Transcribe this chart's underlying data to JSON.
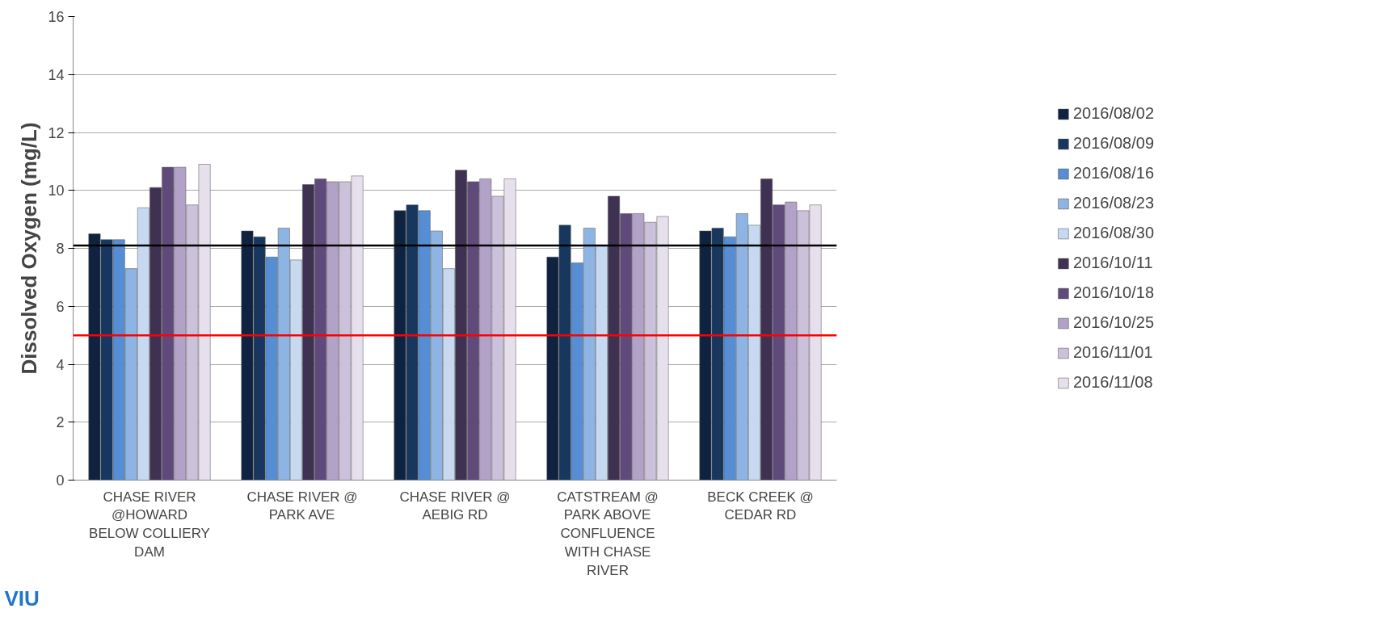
{
  "chart_data": {
    "type": "bar",
    "ylabel": "Dissolved Oxygen (mg/L)",
    "categories": [
      "CHASE RIVER\n@HOWARD\nBELOW COLLIERY\nDAM",
      "CHASE RIVER @\nPARK AVE",
      "CHASE RIVER @\nAEBIG RD",
      "CATSTREAM @\nPARK ABOVE\nCONFLUENCE\nWITH CHASE\nRIVER",
      "BECK CREEK @\nCEDAR RD"
    ],
    "series": [
      {
        "name": "2016/08/02",
        "color": "#0f2341",
        "values": [
          8.5,
          8.6,
          9.3,
          7.7,
          8.6
        ]
      },
      {
        "name": "2016/08/09",
        "color": "#17375e",
        "values": [
          8.3,
          8.4,
          9.5,
          8.8,
          8.7
        ]
      },
      {
        "name": "2016/08/16",
        "color": "#558ed5",
        "values": [
          8.3,
          7.7,
          9.3,
          7.5,
          8.4
        ]
      },
      {
        "name": "2016/08/23",
        "color": "#8eb4e3",
        "values": [
          7.3,
          8.7,
          8.6,
          8.7,
          9.2
        ]
      },
      {
        "name": "2016/08/30",
        "color": "#c6d9f1",
        "values": [
          9.4,
          7.6,
          7.3,
          8.1,
          8.8
        ]
      },
      {
        "name": "2016/10/11",
        "color": "#3f3151",
        "values": [
          10.1,
          10.2,
          10.7,
          9.8,
          10.4
        ]
      },
      {
        "name": "2016/10/18",
        "color": "#604a7b",
        "values": [
          10.8,
          10.4,
          10.3,
          9.2,
          9.5
        ]
      },
      {
        "name": "2016/10/25",
        "color": "#b3a2c7",
        "values": [
          10.8,
          10.3,
          10.4,
          9.2,
          9.6
        ]
      },
      {
        "name": "2016/11/01",
        "color": "#ccc1da",
        "values": [
          9.5,
          10.3,
          9.8,
          8.9,
          9.3
        ]
      },
      {
        "name": "2016/11/08",
        "color": "#e6e0ec",
        "values": [
          10.9,
          10.5,
          10.4,
          9.1,
          9.5
        ]
      }
    ],
    "ylim": [
      0,
      16
    ],
    "yticks": [
      0,
      2,
      4,
      6,
      8,
      10,
      12,
      14,
      16
    ],
    "grid": "y",
    "legend": "right",
    "ref_lines": [
      {
        "axis": "y",
        "value": 8.1,
        "color": "#000000"
      },
      {
        "axis": "y",
        "value": 5,
        "color": "#ff0000"
      }
    ],
    "annotations": [
      "VIU"
    ]
  }
}
